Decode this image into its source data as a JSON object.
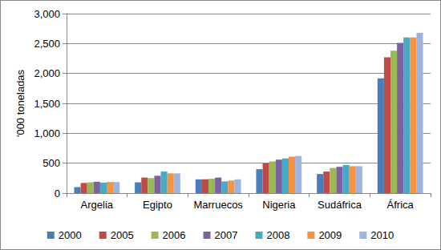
{
  "chart_data": {
    "type": "bar",
    "y_label": "'000 toneladas",
    "categories": [
      "Argelia",
      "Egipto",
      "Marruecos",
      "Nigeria",
      "Sudáfrica",
      "África"
    ],
    "series": [
      {
        "name": "2000",
        "color": "#4a7ebb",
        "values": [
          100,
          180,
          230,
          400,
          320,
          1920
        ]
      },
      {
        "name": "2005",
        "color": "#be4b48",
        "values": [
          170,
          260,
          230,
          500,
          360,
          2270
        ]
      },
      {
        "name": "2006",
        "color": "#98b954",
        "values": [
          180,
          250,
          240,
          530,
          420,
          2380
        ]
      },
      {
        "name": "2007",
        "color": "#7d60a0",
        "values": [
          190,
          290,
          260,
          560,
          440,
          2510
        ]
      },
      {
        "name": "2008",
        "color": "#46aac5",
        "values": [
          175,
          360,
          195,
          580,
          470,
          2600
        ]
      },
      {
        "name": "2009",
        "color": "#f69240",
        "values": [
          185,
          330,
          210,
          610,
          450,
          2600
        ]
      },
      {
        "name": "2010",
        "color": "#9bb4e0",
        "values": [
          185,
          330,
          230,
          620,
          450,
          2680
        ]
      }
    ],
    "ylim": [
      0,
      3000
    ],
    "yticks": [
      0,
      500,
      1000,
      1500,
      2000,
      2500,
      3000
    ],
    "grid": true,
    "legend": "bottom"
  }
}
